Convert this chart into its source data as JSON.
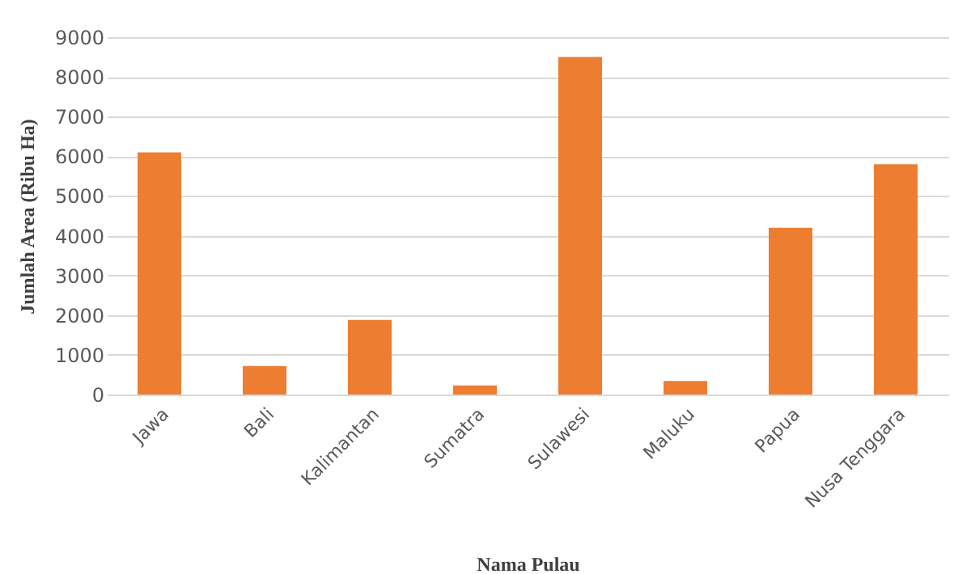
{
  "chart_data": {
    "type": "bar",
    "categories": [
      "Jawa",
      "Bali",
      "Kalimantan",
      "Sumatra",
      "Sulawesi",
      "Maluku",
      "Papua",
      "Nusa Tenggara"
    ],
    "values": [
      6100,
      720,
      1880,
      230,
      8500,
      340,
      4200,
      5800
    ],
    "color": "#ed7d31",
    "xlabel": "Nama Pulau",
    "ylabel": "Jumlah Area (Ribu Ha)",
    "ylim": [
      0,
      9000
    ],
    "yticks": [
      0,
      1000,
      2000,
      3000,
      4000,
      5000,
      6000,
      7000,
      8000,
      9000
    ],
    "grid": "y"
  }
}
